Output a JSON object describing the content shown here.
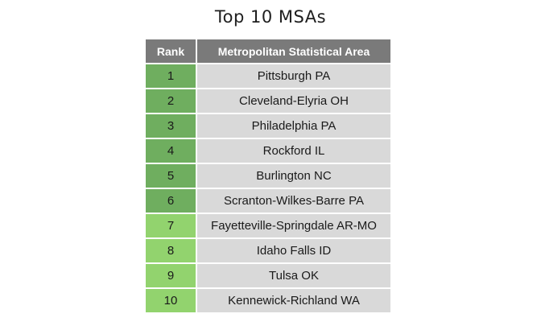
{
  "title": "Top 10 MSAs",
  "table": {
    "headers": {
      "rank": "Rank",
      "area": "Metropolitan Statistical Area"
    },
    "rows": [
      {
        "rank": "1",
        "area": "Pittsburgh PA",
        "shade": "dark"
      },
      {
        "rank": "2",
        "area": "Cleveland-Elyria OH",
        "shade": "dark"
      },
      {
        "rank": "3",
        "area": "Philadelphia PA",
        "shade": "dark"
      },
      {
        "rank": "4",
        "area": "Rockford IL",
        "shade": "dark"
      },
      {
        "rank": "5",
        "area": "Burlington NC",
        "shade": "dark"
      },
      {
        "rank": "6",
        "area": "Scranton-Wilkes-Barre PA",
        "shade": "dark"
      },
      {
        "rank": "7",
        "area": "Fayetteville-Springdale AR-MO",
        "shade": "light"
      },
      {
        "rank": "8",
        "area": "Idaho Falls ID",
        "shade": "light"
      },
      {
        "rank": "9",
        "area": "Tulsa OK",
        "shade": "light"
      },
      {
        "rank": "10",
        "area": "Kennewick-Richland WA",
        "shade": "light"
      }
    ]
  },
  "colors": {
    "header_bg": "#7a7a7a",
    "rank_dark": "#6fae5f",
    "rank_light": "#92d36e",
    "area_bg": "#d9d9d9"
  }
}
